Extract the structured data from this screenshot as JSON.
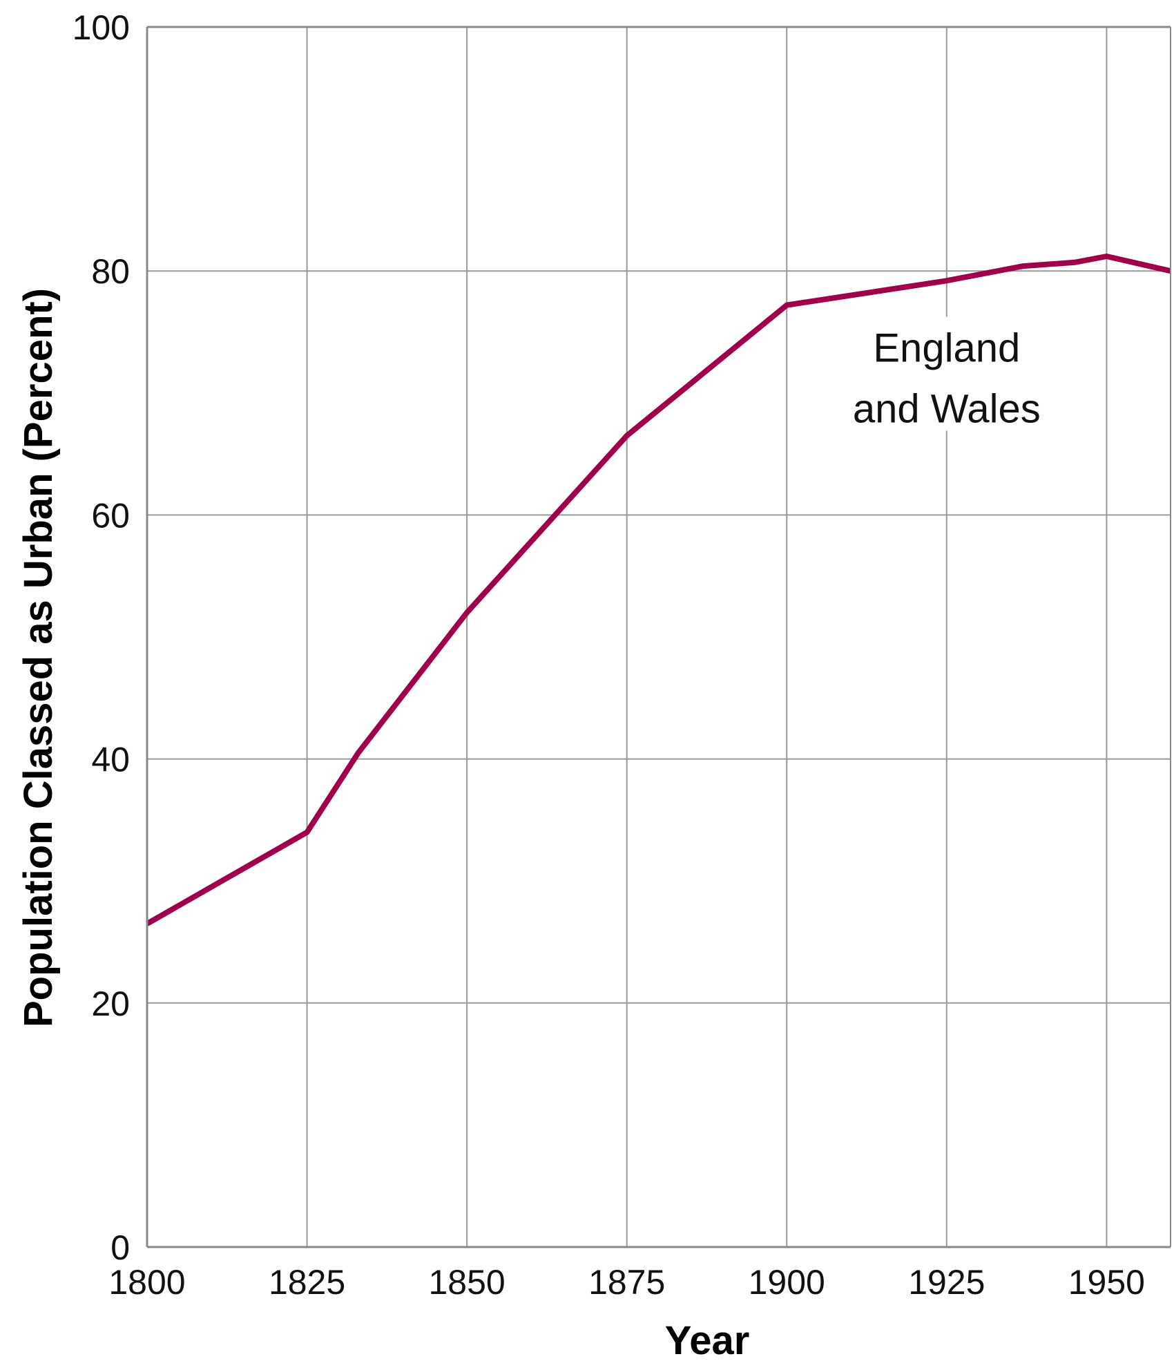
{
  "chart_data": {
    "type": "line",
    "title": "",
    "xlabel": "Year",
    "ylabel": "Population Classed as Urban (Percent)",
    "xlim": [
      1800,
      1960
    ],
    "ylim": [
      0,
      100
    ],
    "x_ticks": [
      1800,
      1825,
      1850,
      1875,
      1900,
      1925,
      1950
    ],
    "y_ticks": [
      0,
      20,
      40,
      60,
      80,
      100
    ],
    "grid": true,
    "colors": {
      "line": "#A0004A",
      "grid": "#999999",
      "axis": "#888888"
    },
    "series": [
      {
        "x": [
          1800,
          1825,
          1833,
          1850,
          1875,
          1900,
          1925,
          1937,
          1945,
          1950,
          1960
        ],
        "values": [
          26.5,
          34,
          40.5,
          52,
          66.5,
          77.2,
          79.2,
          80.4,
          80.7,
          81.2,
          80
        ]
      }
    ],
    "annotations": [
      {
        "lines": [
          "England",
          "and Wales"
        ],
        "x": 1925,
        "y": 72
      }
    ]
  }
}
